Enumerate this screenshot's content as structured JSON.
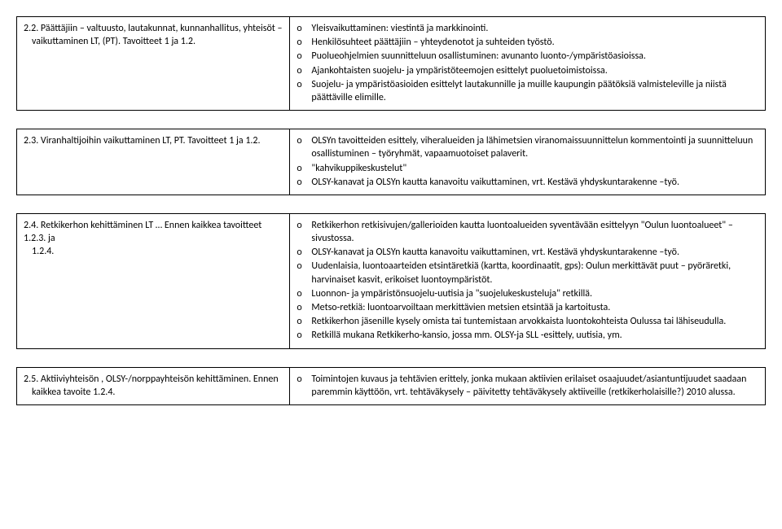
{
  "rows": [
    {
      "left_title": "2.2. Päättäjiin – valtuusto, lautakunnat, kunnanhallitus, yhteisöt –",
      "left_sub": "vaikuttaminen LT, (PT). Tavoitteet 1 ja 1.2.",
      "right_bullets": [
        "Yleisvaikuttaminen: viestintä ja markkinointi.",
        "Henkilösuhteet päättäjiin – yhteydenotot ja suhteiden työstö.",
        "Puolueohjelmien suunnitteluun osallistuminen: avunanto luonto-/ympäristöasioissa.",
        "Ajankohtaisten suojelu- ja ympäristöteemojen esittelyt puoluetoimistoissa.",
        "Suojelu- ja ympäristöasioiden esittelyt lautakunnille ja muille kaupungin päätöksiä valmisteleville ja niistä  päättäville elimille."
      ]
    },
    {
      "left_title": "2.3. Viranhaltijoihin vaikuttaminen LT, PT. Tavoitteet 1 ja 1.2.",
      "left_sub": "",
      "right_bullets": [
        "OLSYn tavoitteiden esittely, viheralueiden ja lähimetsien viranomaissuunnittelun kommentointi ja suunnitteluun osallistuminen – työryhmät, vapaamuotoiset palaverit.",
        " \"kahvikuppikeskustelut\"",
        " OLSY-kanavat ja OLSYn kautta kanavoitu vaikuttaminen, vrt. Kestävä yhdyskuntarakenne –työ."
      ]
    },
    {
      "left_title": "2.4. Retkikerhon kehittäminen LT … Ennen kaikkea tavoitteet 1.2.3. ja",
      "left_sub": "1.2.4.",
      "right_bullets": [
        "Retkikerhon retkisivujen/gallerioiden kautta luontoalueiden syventävään esittelyyn \"Oulun luontoalueet\" –sivustossa.",
        " OLSY-kanavat ja OLSYn kautta kanavoitu vaikuttaminen, vrt. Kestävä yhdyskuntarakenne –työ.",
        "Uudenlaisia, luontoaarteiden etsintäretkiä (kartta, koordinaatit, gps): Oulun merkittävät puut – pyöräretki, harvinaiset kasvit, erikoiset luontoympäristöt.",
        "Luonnon- ja ympäristönsuojelu-uutisia ja  \"suojelukeskusteluja\"  retkillä.",
        "Metso-retkiä: luontoarvoiltaan merkittävien metsien etsintää ja kartoitusta.",
        "Retkikerhon jäsenille kysely omista tai tuntemistaan arvokkaista luontokohteista Oulussa tai lähiseudulla.",
        "Retkillä mukana Retkikerho-kansio, jossa mm. OLSY-ja SLL -esittely, uutisia, ym."
      ]
    },
    {
      "left_title": "2.5. Aktiiviyhteisön , OLSY-/norppayhteisön kehittäminen. Ennen",
      "left_sub": "kaikkea tavoite 1.2.4.",
      "right_bullets": [
        "Toimintojen kuvaus ja tehtävien erittely, jonka mukaan aktiivien erilaiset osaajuudet/asiantuntijuudet saadaan paremmin käyttöön, vrt. tehtäväkysely – päivitetty tehtäväkysely aktiiveille (retkikerholaisille?) 2010 alussa."
      ]
    }
  ],
  "bullet_marker": "o"
}
